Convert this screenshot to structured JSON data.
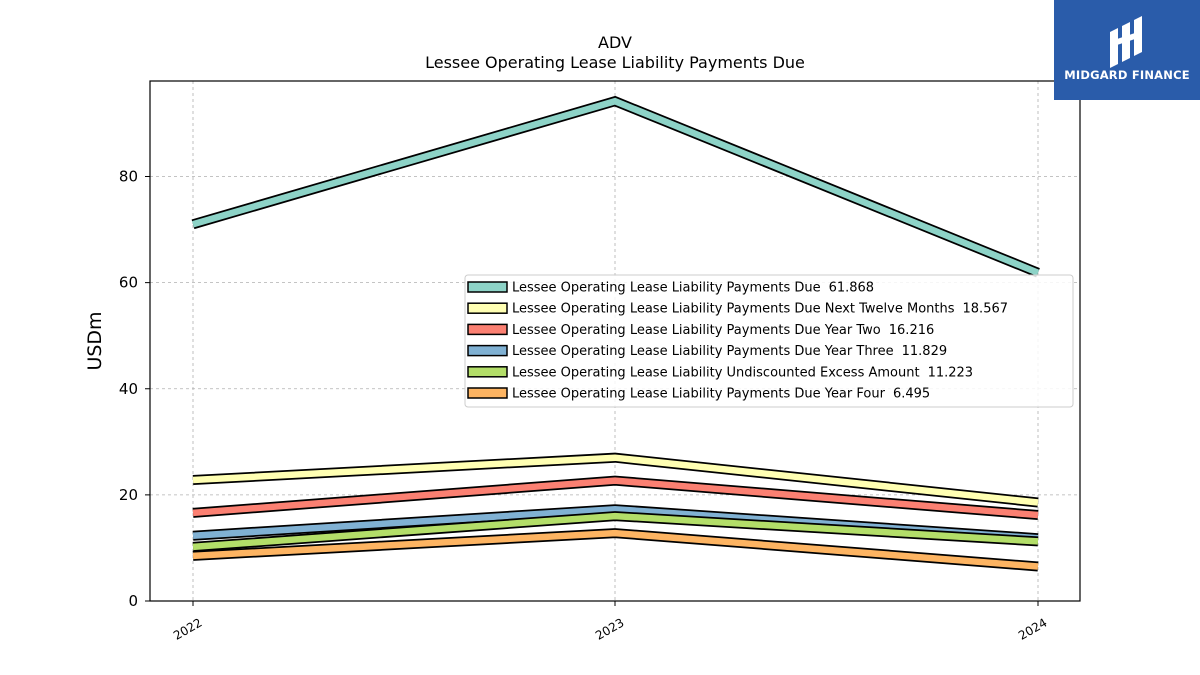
{
  "brand": {
    "name": "MIDGARD FINANCE",
    "color": "#2a5caa"
  },
  "chart_data": {
    "type": "line",
    "title": "ADV",
    "subtitle": "Lessee Operating Lease Liability Payments Due",
    "xlabel": "",
    "ylabel": "USDm",
    "categories": [
      "2022",
      "2023",
      "2024"
    ],
    "ylim": [
      0,
      98
    ],
    "yticks": [
      0,
      20,
      40,
      60,
      80
    ],
    "grid": true,
    "legend_position": "center-right",
    "series": [
      {
        "name": "Lessee Operating Lease Liability Payments Due",
        "legend_value": "61.868",
        "color": "#8dd3c7",
        "values": [
          71.0,
          94.2,
          61.868
        ]
      },
      {
        "name": "Lessee Operating Lease Liability Payments Due Next Twelve Months",
        "legend_value": "18.567",
        "color": "#ffffb3",
        "values": [
          22.8,
          27.0,
          18.567
        ]
      },
      {
        "name": "Lessee Operating Lease Liability Payments Due Year Two",
        "legend_value": "16.216",
        "color": "#fb8072",
        "values": [
          16.6,
          22.7,
          16.216
        ]
      },
      {
        "name": "Lessee Operating Lease Liability Payments Due Year Three",
        "legend_value": "11.829",
        "color": "#80b1d3",
        "values": [
          12.3,
          17.3,
          11.829
        ]
      },
      {
        "name": "Lessee Operating Lease Liability Undiscounted Excess Amount",
        "legend_value": "11.223",
        "color": "#b3de69",
        "values": [
          10.2,
          16.0,
          11.223
        ]
      },
      {
        "name": "Lessee Operating Lease Liability Payments Due Year Four",
        "legend_value": "6.495",
        "color": "#fdb462",
        "values": [
          8.5,
          12.8,
          6.495
        ]
      }
    ]
  }
}
